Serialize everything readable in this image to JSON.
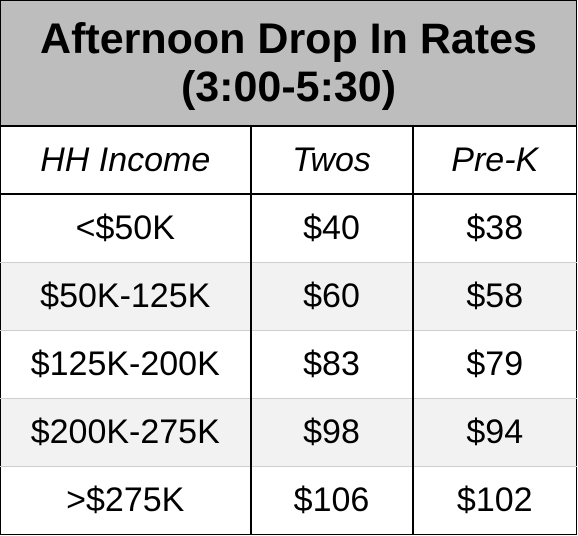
{
  "title": {
    "line1": "Afternoon Drop In Rates",
    "line2": "(3:00-5:30)"
  },
  "columns": [
    "HH Income",
    "Twos",
    "Pre-K"
  ],
  "rows": [
    [
      "<$50K",
      "$40",
      "$38"
    ],
    [
      "$50K-125K",
      "$60",
      "$58"
    ],
    [
      "$125K-200K",
      "$83",
      "$79"
    ],
    [
      "$200K-275K",
      "$98",
      "$94"
    ],
    [
      ">$275K",
      "$106",
      "$102"
    ]
  ],
  "colors": {
    "title_background": "#bdbdbd",
    "alternate_row_background": "#f2f2f2",
    "border": "#000000"
  }
}
